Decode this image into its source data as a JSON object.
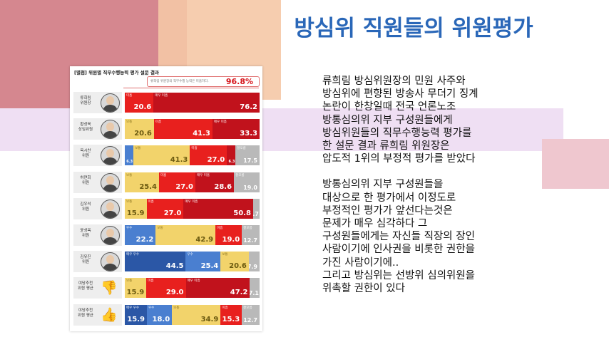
{
  "slide": {
    "title": "방심위 직원들의 위원평가",
    "paragraph1": [
      "류희림 방심위원장의 민원 사주와",
      "방심위에 편향된 방송사 무더기 징계",
      "논란이 한창일때 전국 언론노조",
      "방통심의위 지부 구성원들에게",
      "방심위원들의 직무수행능력 평가를",
      "한 설문 결과 류희림 위원장은",
      "압도적 1위의 부정적 평가를 받았다"
    ],
    "paragraph2": [
      "방통심의위 지부 구성원들을",
      "대상으로 한 평가에서 이정도로",
      "부정적인 평가가 앞선다는것은",
      "문제가 매우 심각하다 그",
      "구성원들에게는 자신들 직장의 장인",
      "사람이기에 인사권을 비롯한 권한을",
      "가진 사람이기에..",
      "그리고 방심위는 선방위 심의위원을",
      "위촉할 권한이 있다"
    ]
  },
  "colors": {
    "deco_rose": "#d5878f",
    "deco_peach": "#f5c8a6",
    "deco_lavender": "#e9d4ef",
    "title_blue": "#2a67b8",
    "very_good": "#2b57a6",
    "good": "#4a7fd0",
    "average": "#f2d36b",
    "poor": "#e8201e",
    "very_poor": "#c1121c",
    "unknown": "#b9b9b9"
  },
  "chart_data": {
    "type": "bar",
    "stacked": true,
    "title": "[별첨] 위원별 직무수행능력 평가 설문 결과",
    "header_note": "류희림 위원장의 직무수행 능력은 미흡하다.",
    "header_value": "96.8%",
    "rows": [
      {
        "name": "류희림\n위원장",
        "icon": "person-photo",
        "segments": [
          {
            "label": "미흡",
            "value": 20.6,
            "color": "poor"
          },
          {
            "label": "매우 미흡",
            "value": 76.2,
            "color": "very_poor"
          }
        ]
      },
      {
        "name": "황성욱\n상임위원",
        "icon": "person-photo",
        "segments": [
          {
            "label": "보통",
            "value": 20.6,
            "color": "average"
          },
          {
            "label": "미흡",
            "value": 41.3,
            "color": "poor"
          },
          {
            "label": "매우 미흡",
            "value": 33.3,
            "color": "very_poor"
          }
        ]
      },
      {
        "name": "옥시찬\n위원",
        "icon": "person-photo",
        "segments": [
          {
            "label": "우수",
            "value": 6.3,
            "color": "good"
          },
          {
            "label": "보통",
            "value": 41.3,
            "color": "average"
          },
          {
            "label": "미흡",
            "value": 27.0,
            "color": "poor"
          },
          {
            "label": "매우 미흡",
            "value": 6.3,
            "color": "very_poor"
          },
          {
            "label": "잘모름",
            "value": 17.5,
            "color": "unknown"
          }
        ]
      },
      {
        "name": "허연회\n위원",
        "icon": "person-photo",
        "segments": [
          {
            "label": "보통",
            "value": 25.4,
            "color": "average"
          },
          {
            "label": "미흡",
            "value": 27.0,
            "color": "poor"
          },
          {
            "label": "매우 미흡",
            "value": 28.6,
            "color": "very_poor"
          },
          {
            "label": "잘모름",
            "value": 19.0,
            "color": "unknown"
          }
        ]
      },
      {
        "name": "김우석\n위원",
        "icon": "person-photo",
        "segments": [
          {
            "label": "보통",
            "value": 15.9,
            "color": "average"
          },
          {
            "label": "미흡",
            "value": 27.0,
            "color": "poor"
          },
          {
            "label": "매우 미흡",
            "value": 50.8,
            "color": "very_poor"
          },
          {
            "label": "",
            "value": 4.7,
            "color": "unknown"
          }
        ]
      },
      {
        "name": "윤성옥\n위원",
        "icon": "person-photo",
        "segments": [
          {
            "label": "우수",
            "value": 22.2,
            "color": "good"
          },
          {
            "label": "보통",
            "value": 42.9,
            "color": "average"
          },
          {
            "label": "미흡",
            "value": 19.0,
            "color": "poor"
          },
          {
            "label": "잘모름",
            "value": 12.7,
            "color": "unknown"
          }
        ]
      },
      {
        "name": "김유진\n위원",
        "icon": "person-photo",
        "segments": [
          {
            "label": "매우 우수",
            "value": 44.5,
            "color": "very_good"
          },
          {
            "label": "우수",
            "value": 25.4,
            "color": "good"
          },
          {
            "label": "보통",
            "value": 20.6,
            "color": "average"
          },
          {
            "label": "",
            "value": 7.9,
            "color": "unknown"
          }
        ]
      },
      {
        "name": "여당추천\n위원 평균",
        "icon": "thumbs-down-icon",
        "segments": [
          {
            "label": "보통",
            "value": 15.9,
            "color": "average"
          },
          {
            "label": "미흡",
            "value": 29.0,
            "color": "poor"
          },
          {
            "label": "매우 미흡",
            "value": 47.2,
            "color": "very_poor"
          },
          {
            "label": "",
            "value": 7.1,
            "color": "unknown"
          }
        ]
      },
      {
        "name": "야당추천\n위원 평균",
        "icon": "thumbs-up-icon",
        "segments": [
          {
            "label": "매우 우수",
            "value": 15.9,
            "color": "very_good"
          },
          {
            "label": "우수",
            "value": 18.0,
            "color": "good"
          },
          {
            "label": "보통",
            "value": 34.9,
            "color": "average"
          },
          {
            "label": "미흡",
            "value": 15.3,
            "color": "poor"
          },
          {
            "label": "잘모름",
            "value": 12.7,
            "color": "unknown"
          }
        ]
      }
    ]
  }
}
